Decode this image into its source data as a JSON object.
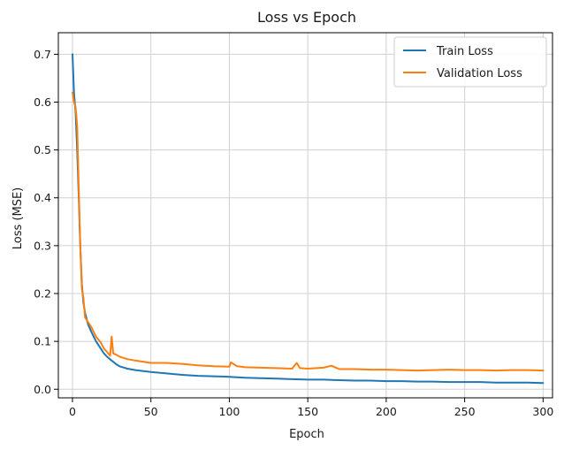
{
  "chart_data": {
    "type": "line",
    "title": "Loss vs Epoch",
    "xlabel": "Epoch",
    "ylabel": "Loss (MSE)",
    "xlim": [
      -9,
      306
    ],
    "ylim": [
      -0.018,
      0.745
    ],
    "xticks": [
      0,
      50,
      100,
      150,
      200,
      250,
      300
    ],
    "xtick_labels": [
      "0",
      "50",
      "100",
      "150",
      "200",
      "250",
      "300"
    ],
    "yticks": [
      0.0,
      0.1,
      0.2,
      0.3,
      0.4,
      0.5,
      0.6,
      0.7
    ],
    "ytick_labels": [
      "0.0",
      "0.1",
      "0.2",
      "0.3",
      "0.4",
      "0.5",
      "0.6",
      "0.7"
    ],
    "grid": true,
    "legend_position": "top-right",
    "series": [
      {
        "name": "Train Loss",
        "color": "#1f77b4",
        "x": [
          0,
          1,
          2,
          3,
          4,
          5,
          6,
          7,
          8,
          10,
          12,
          15,
          18,
          20,
          22,
          25,
          28,
          30,
          35,
          40,
          50,
          60,
          70,
          80,
          90,
          100,
          110,
          120,
          130,
          140,
          150,
          160,
          170,
          180,
          190,
          200,
          210,
          220,
          230,
          240,
          250,
          260,
          270,
          280,
          290,
          300
        ],
        "y": [
          0.7,
          0.62,
          0.58,
          0.5,
          0.4,
          0.3,
          0.22,
          0.18,
          0.16,
          0.135,
          0.12,
          0.1,
          0.085,
          0.075,
          0.068,
          0.06,
          0.052,
          0.048,
          0.043,
          0.04,
          0.036,
          0.033,
          0.03,
          0.028,
          0.027,
          0.026,
          0.024,
          0.023,
          0.022,
          0.021,
          0.02,
          0.02,
          0.019,
          0.018,
          0.018,
          0.017,
          0.017,
          0.016,
          0.016,
          0.015,
          0.015,
          0.015,
          0.014,
          0.014,
          0.014,
          0.013
        ]
      },
      {
        "name": "Validation Loss",
        "color": "#ff7f0e",
        "x": [
          0,
          1,
          2,
          3,
          4,
          5,
          6,
          7,
          8,
          10,
          12,
          15,
          18,
          20,
          22,
          24,
          25,
          26,
          28,
          30,
          35,
          40,
          50,
          60,
          70,
          80,
          90,
          100,
          101,
          105,
          110,
          120,
          130,
          140,
          143,
          145,
          150,
          160,
          165,
          170,
          180,
          190,
          200,
          210,
          220,
          230,
          240,
          250,
          260,
          270,
          280,
          290,
          300
        ],
        "y": [
          0.62,
          0.6,
          0.59,
          0.55,
          0.42,
          0.3,
          0.21,
          0.19,
          0.15,
          0.14,
          0.13,
          0.11,
          0.098,
          0.085,
          0.078,
          0.07,
          0.11,
          0.075,
          0.072,
          0.068,
          0.063,
          0.06,
          0.055,
          0.055,
          0.053,
          0.05,
          0.048,
          0.047,
          0.056,
          0.048,
          0.046,
          0.045,
          0.044,
          0.043,
          0.055,
          0.044,
          0.043,
          0.045,
          0.049,
          0.042,
          0.042,
          0.041,
          0.041,
          0.04,
          0.039,
          0.04,
          0.041,
          0.04,
          0.04,
          0.039,
          0.04,
          0.04,
          0.039
        ]
      }
    ]
  }
}
